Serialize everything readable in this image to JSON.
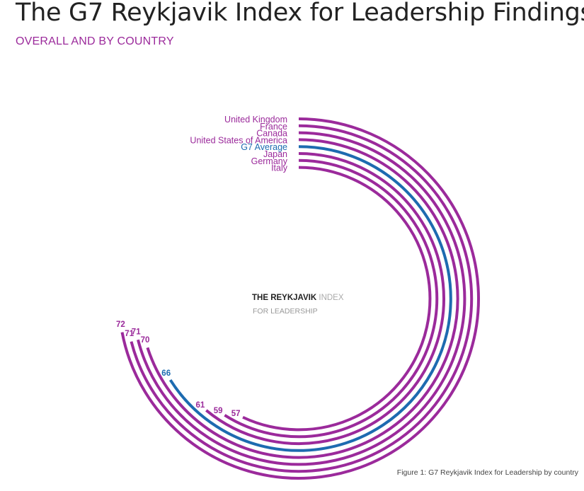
{
  "title": "The G7 Reykjavik Index for Leadership Findings:",
  "subtitle": "OVERALL AND BY COUNTRY",
  "caption": "Figure 1: G7 Reykjavik Index for Leadership by country",
  "logo": {
    "part1": "THE REYKJAVIK",
    "part2": "INDEX",
    "part3": "FOR LEADERSHIP"
  },
  "colors": {
    "country": "#9b2a9b",
    "average": "#1d6bb0"
  },
  "chart_data": {
    "type": "radial-bar",
    "title": "The G7 Reykjavik Index for Leadership Findings:",
    "subtitle": "OVERALL AND BY COUNTRY",
    "max": 100,
    "series": [
      {
        "name": "United Kingdom",
        "value": 72,
        "kind": "country"
      },
      {
        "name": "France",
        "value": 71,
        "kind": "country"
      },
      {
        "name": "Canada",
        "value": 71,
        "kind": "country"
      },
      {
        "name": "United States of America",
        "value": 70,
        "kind": "country"
      },
      {
        "name": "G7 Average",
        "value": 66,
        "kind": "average"
      },
      {
        "name": "Japan",
        "value": 61,
        "kind": "country"
      },
      {
        "name": "Germany",
        "value": 59,
        "kind": "country"
      },
      {
        "name": "Italy",
        "value": 57,
        "kind": "country"
      }
    ]
  }
}
